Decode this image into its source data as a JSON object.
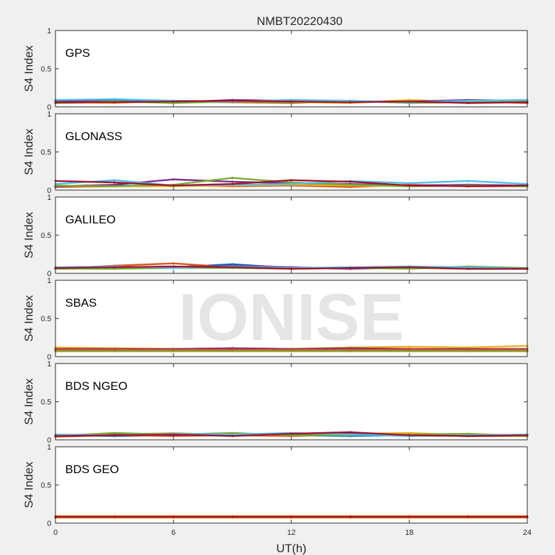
{
  "figure_title": "NMBT20220430",
  "watermark": "IONISE",
  "series_colors": [
    "#0072bd",
    "#d95319",
    "#edb120",
    "#7e2f8e",
    "#77ac30",
    "#4dbeee",
    "#a2142f"
  ],
  "chart_data": [
    {
      "type": "scatter",
      "panel_label": "GPS",
      "ylabel": "S4 Index",
      "xlabel": "UT(h)",
      "xlim": [
        0,
        24
      ],
      "ylim": [
        0,
        1
      ],
      "xticks": [
        0,
        6,
        12,
        18,
        24
      ],
      "yticks": [
        0,
        0.5,
        1
      ],
      "yticklabels": [
        "0",
        "0.5",
        "1"
      ],
      "series": [
        {
          "color": "#0072bd",
          "x": [
            0,
            3,
            6,
            9,
            12,
            15,
            18,
            21,
            24
          ],
          "y": [
            0.07,
            0.08,
            0.06,
            0.08,
            0.07,
            0.06,
            0.08,
            0.07,
            0.06
          ]
        },
        {
          "color": "#d95319",
          "x": [
            0,
            3,
            6,
            9,
            12,
            15,
            18,
            21,
            24
          ],
          "y": [
            0.05,
            0.06,
            0.07,
            0.06,
            0.05,
            0.07,
            0.06,
            0.07,
            0.05
          ]
        },
        {
          "color": "#edb120",
          "x": [
            0,
            3,
            6,
            9,
            12,
            15,
            18,
            21,
            24
          ],
          "y": [
            0.06,
            0.05,
            0.08,
            0.07,
            0.06,
            0.05,
            0.09,
            0.06,
            0.07
          ]
        },
        {
          "color": "#7e2f8e",
          "x": [
            0,
            3,
            6,
            9,
            12,
            15,
            18,
            21,
            24
          ],
          "y": [
            0.08,
            0.07,
            0.06,
            0.09,
            0.08,
            0.07,
            0.07,
            0.09,
            0.08
          ]
        },
        {
          "color": "#77ac30",
          "x": [
            0,
            3,
            6,
            9,
            12,
            15,
            18,
            21,
            24
          ],
          "y": [
            0.05,
            0.07,
            0.05,
            0.07,
            0.06,
            0.08,
            0.05,
            0.06,
            0.07
          ]
        },
        {
          "color": "#4dbeee",
          "x": [
            0,
            3,
            6,
            9,
            12,
            15,
            18,
            21,
            24
          ],
          "y": [
            0.09,
            0.1,
            0.08,
            0.07,
            0.09,
            0.08,
            0.06,
            0.08,
            0.09
          ]
        },
        {
          "color": "#a2142f",
          "x": [
            0,
            3,
            6,
            9,
            12,
            15,
            18,
            21,
            24
          ],
          "y": [
            0.06,
            0.06,
            0.07,
            0.08,
            0.07,
            0.06,
            0.07,
            0.05,
            0.06
          ]
        }
      ]
    },
    {
      "type": "scatter",
      "panel_label": "GLONASS",
      "ylabel": "S4 Index",
      "xlabel": "UT(h)",
      "xlim": [
        0,
        24
      ],
      "ylim": [
        0,
        1
      ],
      "xticks": [
        0,
        6,
        12,
        18,
        24
      ],
      "yticks": [
        0,
        0.5,
        1
      ],
      "yticklabels": [
        "0",
        "0.5",
        "1"
      ],
      "series": [
        {
          "color": "#0072bd",
          "x": [
            0,
            3,
            6,
            9,
            12,
            15,
            18,
            21,
            24
          ],
          "y": [
            0.05,
            0.06,
            0.05,
            0.07,
            0.06,
            0.05,
            0.06,
            0.07,
            0.06
          ]
        },
        {
          "color": "#d95319",
          "x": [
            0,
            3,
            6,
            9,
            12,
            15,
            18,
            21,
            24
          ],
          "y": [
            0.04,
            0.05,
            0.06,
            0.05,
            0.06,
            0.04,
            0.07,
            0.05,
            0.05
          ]
        },
        {
          "color": "#edb120",
          "x": [
            0,
            3,
            6,
            9,
            12,
            15,
            18,
            21,
            24
          ],
          "y": [
            0.06,
            0.05,
            0.05,
            0.06,
            0.07,
            0.06,
            0.05,
            0.06,
            0.05
          ]
        },
        {
          "color": "#7e2f8e",
          "x": [
            0,
            3,
            6,
            9,
            12,
            15,
            18,
            21,
            24
          ],
          "y": [
            0.05,
            0.07,
            0.14,
            0.11,
            0.09,
            0.08,
            0.06,
            0.07,
            0.06
          ]
        },
        {
          "color": "#77ac30",
          "x": [
            0,
            3,
            6,
            9,
            12,
            15,
            18,
            21,
            24
          ],
          "y": [
            0.06,
            0.05,
            0.07,
            0.16,
            0.1,
            0.07,
            0.05,
            0.06,
            0.05
          ]
        },
        {
          "color": "#4dbeee",
          "x": [
            0,
            3,
            6,
            9,
            12,
            15,
            18,
            21,
            24
          ],
          "y": [
            0.08,
            0.13,
            0.06,
            0.07,
            0.08,
            0.12,
            0.09,
            0.12,
            0.08
          ]
        },
        {
          "color": "#a2142f",
          "x": [
            0,
            3,
            6,
            9,
            12,
            15,
            18,
            21,
            24
          ],
          "y": [
            0.12,
            0.1,
            0.06,
            0.08,
            0.13,
            0.11,
            0.06,
            0.05,
            0.06
          ]
        }
      ]
    },
    {
      "type": "scatter",
      "panel_label": "GALILEO",
      "ylabel": "S4 Index",
      "xlabel": "UT(h)",
      "xlim": [
        0,
        24
      ],
      "ylim": [
        0,
        1
      ],
      "xticks": [
        0,
        6,
        12,
        18,
        24
      ],
      "yticks": [
        0,
        0.5,
        1
      ],
      "yticklabels": [
        "0",
        "0.5",
        "1"
      ],
      "series": [
        {
          "color": "#0072bd",
          "x": [
            0,
            3,
            6,
            9,
            12,
            15,
            18,
            21,
            24
          ],
          "y": [
            0.07,
            0.08,
            0.08,
            0.12,
            0.07,
            0.06,
            0.07,
            0.06,
            0.06
          ]
        },
        {
          "color": "#d95319",
          "x": [
            0,
            3,
            6,
            9,
            12,
            15,
            18,
            21,
            24
          ],
          "y": [
            0.06,
            0.1,
            0.13,
            0.08,
            0.06,
            0.07,
            0.08,
            0.07,
            0.06
          ]
        },
        {
          "color": "#edb120",
          "x": [
            0,
            3,
            6,
            9,
            12,
            15,
            18,
            21,
            24
          ],
          "y": [
            0.08,
            0.07,
            0.09,
            0.08,
            0.06,
            0.07,
            0.07,
            0.06,
            0.07
          ]
        },
        {
          "color": "#7e2f8e",
          "x": [
            0,
            3,
            6,
            9,
            12,
            15,
            18,
            21,
            24
          ],
          "y": [
            0.07,
            0.07,
            0.08,
            0.1,
            0.08,
            0.06,
            0.08,
            0.06,
            0.06
          ]
        },
        {
          "color": "#77ac30",
          "x": [
            0,
            3,
            6,
            9,
            12,
            15,
            18,
            21,
            24
          ],
          "y": [
            0.06,
            0.06,
            0.07,
            0.07,
            0.06,
            0.07,
            0.06,
            0.09,
            0.07
          ]
        },
        {
          "color": "#4dbeee",
          "x": [
            0,
            3,
            6,
            9,
            12,
            15,
            18,
            21,
            24
          ],
          "y": [
            0.08,
            0.09,
            0.07,
            0.09,
            0.07,
            0.08,
            0.09,
            0.08,
            0.06
          ]
        },
        {
          "color": "#a2142f",
          "x": [
            0,
            3,
            6,
            9,
            12,
            15,
            18,
            21,
            24
          ],
          "y": [
            0.07,
            0.08,
            0.09,
            0.08,
            0.06,
            0.07,
            0.08,
            0.06,
            0.06
          ]
        }
      ]
    },
    {
      "type": "scatter",
      "panel_label": "SBAS",
      "ylabel": "S4 Index",
      "xlabel": "UT(h)",
      "xlim": [
        0,
        24
      ],
      "ylim": [
        0,
        1
      ],
      "xticks": [
        0,
        6,
        12,
        18,
        24
      ],
      "yticks": [
        0,
        0.5,
        1
      ],
      "yticklabels": [
        "0",
        "0.5",
        "1"
      ],
      "series": [
        {
          "color": "#77ac30",
          "x": [
            0,
            3,
            6,
            9,
            12,
            15,
            18,
            21,
            24
          ],
          "y": [
            0.07,
            0.07,
            0.07,
            0.07,
            0.07,
            0.07,
            0.07,
            0.07,
            0.07
          ]
        },
        {
          "color": "#edb120",
          "x": [
            0,
            3,
            6,
            9,
            12,
            15,
            18,
            21,
            24
          ],
          "y": [
            0.12,
            0.11,
            0.1,
            0.11,
            0.1,
            0.12,
            0.13,
            0.12,
            0.14
          ]
        },
        {
          "color": "#7e2f8e",
          "x": [
            0,
            3,
            6,
            9,
            12,
            15,
            18,
            21,
            24
          ],
          "y": [
            0.1,
            0.1,
            0.1,
            0.11,
            0.1,
            0.11,
            0.1,
            0.1,
            0.1
          ]
        },
        {
          "color": "#d95319",
          "x": [
            0,
            3,
            6,
            9,
            12,
            15,
            18,
            21,
            24
          ],
          "y": [
            0.09,
            0.09,
            0.09,
            0.09,
            0.09,
            0.09,
            0.09,
            0.09,
            0.09
          ]
        }
      ]
    },
    {
      "type": "scatter",
      "panel_label": "BDS NGEO",
      "ylabel": "S4 Index",
      "xlabel": "UT(h)",
      "xlim": [
        0,
        24
      ],
      "ylim": [
        0,
        1
      ],
      "xticks": [
        0,
        6,
        12,
        18,
        24
      ],
      "yticks": [
        0,
        0.5,
        1
      ],
      "yticklabels": [
        "0",
        "0.5",
        "1"
      ],
      "series": [
        {
          "color": "#0072bd",
          "x": [
            0,
            3,
            6,
            9,
            12,
            15,
            18,
            21,
            24
          ],
          "y": [
            0.06,
            0.05,
            0.06,
            0.07,
            0.06,
            0.05,
            0.06,
            0.05,
            0.06
          ]
        },
        {
          "color": "#d95319",
          "x": [
            0,
            3,
            6,
            9,
            12,
            15,
            18,
            21,
            24
          ],
          "y": [
            0.04,
            0.06,
            0.05,
            0.06,
            0.05,
            0.07,
            0.06,
            0.05,
            0.05
          ]
        },
        {
          "color": "#edb120",
          "x": [
            0,
            3,
            6,
            9,
            12,
            15,
            18,
            21,
            24
          ],
          "y": [
            0.05,
            0.07,
            0.09,
            0.06,
            0.07,
            0.08,
            0.09,
            0.06,
            0.05
          ]
        },
        {
          "color": "#7e2f8e",
          "x": [
            0,
            3,
            6,
            9,
            12,
            15,
            18,
            21,
            24
          ],
          "y": [
            0.06,
            0.08,
            0.06,
            0.08,
            0.07,
            0.09,
            0.06,
            0.07,
            0.06
          ]
        },
        {
          "color": "#77ac30",
          "x": [
            0,
            3,
            6,
            9,
            12,
            15,
            18,
            21,
            24
          ],
          "y": [
            0.05,
            0.09,
            0.07,
            0.09,
            0.06,
            0.06,
            0.07,
            0.08,
            0.05
          ]
        },
        {
          "color": "#4dbeee",
          "x": [
            0,
            3,
            6,
            9,
            12,
            15,
            18,
            21,
            24
          ],
          "y": [
            0.07,
            0.06,
            0.08,
            0.07,
            0.09,
            0.07,
            0.05,
            0.06,
            0.07
          ]
        },
        {
          "color": "#a2142f",
          "x": [
            0,
            3,
            6,
            9,
            12,
            15,
            18,
            21,
            24
          ],
          "y": [
            0.05,
            0.06,
            0.07,
            0.05,
            0.08,
            0.1,
            0.06,
            0.05,
            0.06
          ]
        }
      ]
    },
    {
      "type": "scatter",
      "panel_label": "BDS GEO",
      "ylabel": "S4 Index",
      "xlabel": "UT(h)",
      "xlim": [
        0,
        24
      ],
      "ylim": [
        0,
        1
      ],
      "xticks": [
        0,
        6,
        12,
        18,
        24
      ],
      "yticks": [
        0,
        0.5,
        1
      ],
      "yticklabels": [
        "0",
        "0.5",
        "1"
      ],
      "series": [
        {
          "color": "#edb120",
          "x": [
            0,
            3,
            6,
            9,
            12,
            15,
            18,
            21,
            24
          ],
          "y": [
            0.07,
            0.07,
            0.07,
            0.07,
            0.07,
            0.07,
            0.07,
            0.07,
            0.07
          ]
        },
        {
          "color": "#d95319",
          "x": [
            0,
            3,
            6,
            9,
            12,
            15,
            18,
            21,
            24
          ],
          "y": [
            0.09,
            0.09,
            0.09,
            0.09,
            0.09,
            0.09,
            0.09,
            0.09,
            0.09
          ]
        },
        {
          "color": "#a2142f",
          "x": [
            0,
            3,
            6,
            9,
            12,
            15,
            18,
            21,
            24
          ],
          "y": [
            0.08,
            0.08,
            0.08,
            0.08,
            0.08,
            0.08,
            0.08,
            0.08,
            0.08
          ]
        }
      ]
    }
  ]
}
